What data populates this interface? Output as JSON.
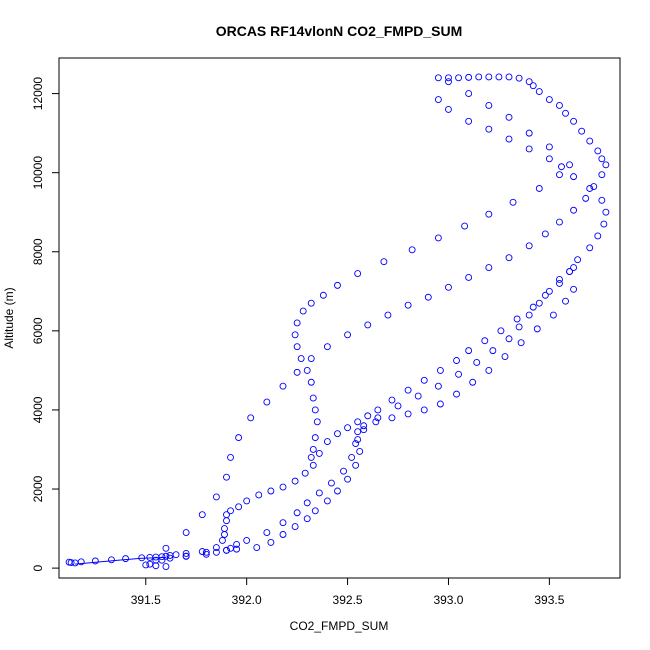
{
  "chart_data": {
    "type": "scatter",
    "title": "ORCAS RF14vlonN CO2_FMPD_SUM",
    "xlabel": "CO2_FMPD_SUM",
    "ylabel": "Altitude (m)",
    "xlim": [
      391.07,
      393.85
    ],
    "ylim": [
      -250,
      12900
    ],
    "xticks": [
      "391.5",
      "392.0",
      "392.5",
      "393.0",
      "393.5"
    ],
    "xtick_values": [
      391.5,
      392.0,
      392.5,
      393.0,
      393.5
    ],
    "yticks": [
      "0",
      "2000",
      "4000",
      "6000",
      "8000",
      "10000",
      "12000"
    ],
    "ytick_values": [
      0,
      2000,
      4000,
      6000,
      8000,
      10000,
      12000
    ],
    "marker": "open-circle",
    "color": "#0000ff",
    "series": [
      {
        "x": [
          391.12,
          391.13,
          391.15,
          391.18,
          391.25,
          391.33,
          391.4,
          391.48,
          391.52,
          391.55,
          391.58,
          391.6,
          391.62,
          391.65,
          391.7,
          391.78,
          391.85,
          391.88,
          391.89,
          391.89,
          391.9,
          391.9,
          391.92,
          391.96,
          392.0,
          392.06,
          392.12,
          392.18,
          392.24,
          392.29,
          392.33,
          392.36,
          392.4,
          392.45,
          392.5,
          392.55,
          392.6,
          392.65,
          392.72,
          392.8,
          392.88,
          392.96,
          393.04,
          393.1,
          393.18,
          393.26,
          393.34,
          393.42,
          393.48,
          393.55,
          393.6,
          393.64,
          393.7,
          393.74,
          393.77,
          393.78,
          393.76,
          393.7,
          393.62,
          393.56,
          393.5,
          393.4,
          393.3,
          393.2,
          393.1,
          393.0,
          392.95
        ],
        "y": [
          150,
          140,
          130,
          160,
          180,
          210,
          240,
          260,
          270,
          280,
          290,
          300,
          320,
          340,
          370,
          420,
          520,
          700,
          850,
          1000,
          1200,
          1350,
          1450,
          1550,
          1700,
          1850,
          1950,
          2050,
          2200,
          2400,
          2600,
          2900,
          3200,
          3400,
          3550,
          3700,
          3850,
          4000,
          4250,
          4500,
          4750,
          5000,
          5250,
          5500,
          5750,
          6000,
          6300,
          6600,
          6900,
          7200,
          7500,
          7800,
          8100,
          8400,
          8700,
          9000,
          9300,
          9600,
          9900,
          10150,
          10350,
          10600,
          10850,
          11100,
          11300,
          11600,
          11850
        ]
      },
      {
        "x": [
          392.95,
          393.0,
          393.05,
          393.1,
          393.15,
          393.2,
          393.25,
          393.3,
          393.35,
          393.4,
          393.42,
          393.45,
          393.5,
          393.55,
          393.58,
          393.62,
          393.66,
          393.7,
          393.74,
          393.76,
          393.78,
          393.76,
          393.72,
          393.68,
          393.62,
          393.55,
          393.48,
          393.4,
          393.3,
          393.2,
          393.1,
          393.0,
          392.9,
          392.8,
          392.7,
          392.6,
          392.5,
          392.4,
          392.32,
          392.25,
          392.18,
          392.1,
          392.02,
          391.96,
          391.92,
          391.9,
          391.85,
          391.78,
          391.7,
          391.6,
          391.55,
          391.52
        ],
        "y": [
          12400,
          12400,
          12400,
          12410,
          12420,
          12420,
          12420,
          12420,
          12390,
          12300,
          12200,
          12050,
          11850,
          11700,
          11500,
          11300,
          11050,
          10800,
          10550,
          10350,
          10200,
          9950,
          9650,
          9350,
          9050,
          8750,
          8450,
          8150,
          7850,
          7600,
          7350,
          7100,
          6850,
          6650,
          6400,
          6150,
          5900,
          5600,
          5300,
          4950,
          4600,
          4200,
          3800,
          3300,
          2800,
          2300,
          1800,
          1350,
          900,
          500,
          200,
          100
        ]
      },
      {
        "x": [
          391.5,
          391.55,
          391.6,
          391.7,
          391.8,
          391.9,
          391.95,
          392.05,
          392.12,
          392.18,
          392.24,
          392.3,
          392.34,
          392.4,
          392.45,
          392.5,
          392.54,
          392.56,
          392.55,
          392.55,
          392.58,
          392.64,
          392.72,
          392.8,
          392.88,
          392.96,
          393.04,
          393.12,
          393.2,
          393.28,
          393.36,
          393.44,
          393.52,
          393.58,
          393.62
        ],
        "y": [
          80,
          60,
          40,
          300,
          400,
          450,
          480,
          520,
          650,
          850,
          1050,
          1250,
          1450,
          1700,
          1950,
          2250,
          2600,
          2950,
          3250,
          3450,
          3600,
          3700,
          3800,
          3900,
          4000,
          4150,
          4400,
          4700,
          5000,
          5350,
          5700,
          6050,
          6400,
          6750,
          7050
        ]
      },
      {
        "x": [
          393.62,
          393.6,
          393.55,
          393.5,
          393.45,
          393.4,
          393.35,
          393.3,
          393.22,
          393.14,
          393.05,
          392.95,
          392.85,
          392.75,
          392.65,
          392.58,
          392.54,
          392.52,
          392.48,
          392.42,
          392.36,
          392.3,
          392.25,
          392.18,
          392.1,
          392.0,
          391.95,
          391.92,
          391.9,
          391.85,
          391.8,
          391.7,
          391.62,
          391.58
        ],
        "y": [
          7600,
          7500,
          7300,
          7000,
          6700,
          6400,
          6100,
          5800,
          5500,
          5200,
          4900,
          4600,
          4350,
          4100,
          3800,
          3500,
          3150,
          2800,
          2450,
          2150,
          1900,
          1650,
          1400,
          1150,
          900,
          700,
          600,
          500,
          450,
          400,
          350,
          300,
          250,
          200
        ]
      },
      {
        "x": [
          392.32,
          392.33,
          392.34,
          392.35,
          392.34,
          392.33,
          392.32,
          392.3,
          392.27,
          392.25,
          392.24,
          392.25,
          392.28,
          392.32,
          392.38,
          392.45,
          392.55,
          392.68,
          392.82,
          392.95,
          393.08,
          393.2,
          393.32,
          393.45,
          393.55,
          393.6,
          393.5,
          393.4,
          393.3,
          393.2,
          393.1,
          393.0
        ],
        "y": [
          2800,
          3000,
          3300,
          3700,
          4000,
          4300,
          4700,
          5000,
          5300,
          5600,
          5900,
          6200,
          6500,
          6700,
          6900,
          7150,
          7450,
          7750,
          8050,
          8350,
          8650,
          8950,
          9250,
          9600,
          9950,
          10200,
          10650,
          11000,
          11400,
          11700,
          12000,
          12300
        ]
      }
    ],
    "connected_segment": {
      "x": [
        391.15,
        391.3,
        391.48,
        391.6
      ],
      "y": [
        100,
        170,
        250,
        270
      ]
    }
  }
}
